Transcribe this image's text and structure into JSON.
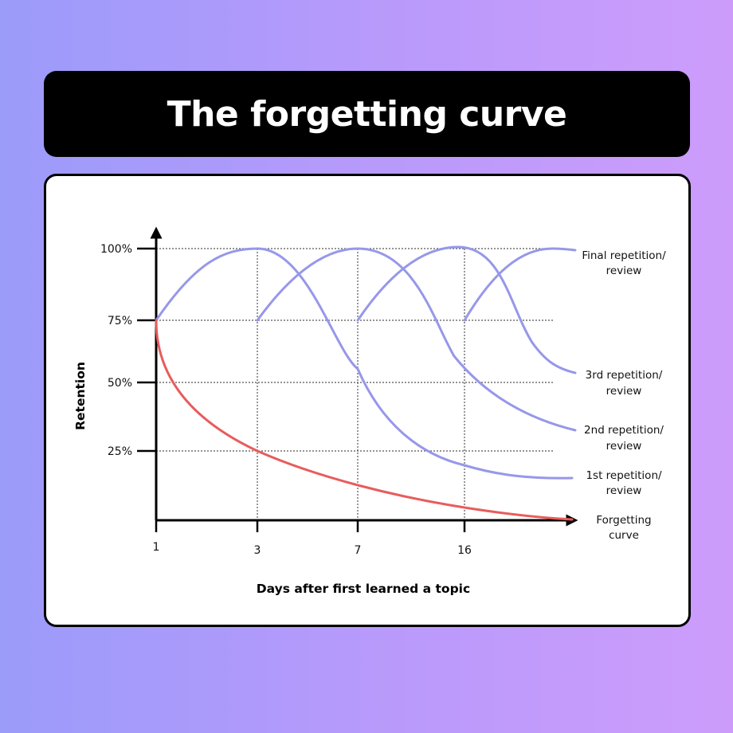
{
  "header": {
    "title": "The forgetting curve"
  },
  "chart_data": {
    "type": "line",
    "xlabel": "Days after first learned a topic",
    "ylabel": "Retention",
    "x_ticks": [
      "1",
      "3",
      "7",
      "16"
    ],
    "y_ticks": [
      "25%",
      "50%",
      "75%",
      "100%"
    ],
    "ylim": [
      0,
      100
    ],
    "grid": "dotted reference lines at 25%, 50%, 75%, 100% and at days 3, 7, 16",
    "colors": {
      "forgetting": "#e85c5c",
      "repetition": "#9797ea",
      "axis": "#000000"
    },
    "series": [
      {
        "name": "Forgetting curve",
        "x": [
          "1",
          "3",
          "7",
          "16",
          "end"
        ],
        "values": [
          75,
          25,
          12,
          4,
          0
        ]
      },
      {
        "name": "1st repetition/ review",
        "x": [
          "1",
          "3",
          "7",
          "16",
          "end"
        ],
        "values": [
          75,
          100,
          56,
          22,
          15
        ]
      },
      {
        "name": "2nd repetition/ review",
        "x": [
          "3",
          "7",
          "16",
          "end"
        ],
        "values": [
          75,
          100,
          60,
          33
        ]
      },
      {
        "name": "3rd repetition/ review",
        "x": [
          "7",
          "16",
          "end"
        ],
        "values": [
          75,
          100,
          53
        ]
      },
      {
        "name": "Final repetition/ review",
        "x": [
          "16",
          "end"
        ],
        "values": [
          75,
          100
        ]
      }
    ],
    "labels": [
      {
        "key": "final",
        "lines": [
          "Final repetition/",
          "review"
        ]
      },
      {
        "key": "third",
        "lines": [
          "3rd repetition/",
          "review"
        ]
      },
      {
        "key": "second",
        "lines": [
          "2nd repetition/",
          "review"
        ]
      },
      {
        "key": "first",
        "lines": [
          "1st repetition/",
          "review"
        ]
      },
      {
        "key": "forget",
        "lines": [
          "Forgetting",
          "curve"
        ]
      }
    ]
  }
}
